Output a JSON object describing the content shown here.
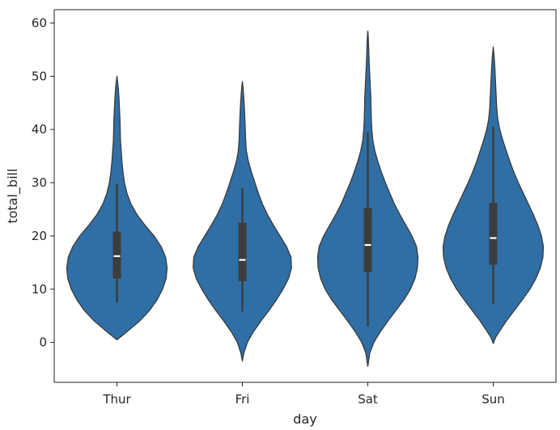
{
  "chart_data": {
    "type": "violin",
    "xlabel": "day",
    "ylabel": "total_bill",
    "ylim": [
      -7.5,
      62.5
    ],
    "yticks": [
      0,
      10,
      20,
      30,
      40,
      50,
      60
    ],
    "grid": false,
    "colors": {
      "violin": "#2f6fa6",
      "outline": "#3a3a3a",
      "box": "#3d3d3d",
      "median": "#ffffff"
    },
    "categories": [
      "Thur",
      "Fri",
      "Sat",
      "Sun"
    ],
    "violins": [
      {
        "category": "Thur",
        "q1": 12.0,
        "median": 16.2,
        "q3": 20.8,
        "whisker_low": 7.5,
        "whisker_high": 29.8,
        "kde_min": 0.5,
        "kde_max": 50.0,
        "profile": [
          [
            0.5,
            0.0
          ],
          [
            2,
            0.2
          ],
          [
            4,
            0.45
          ],
          [
            6,
            0.65
          ],
          [
            8,
            0.8
          ],
          [
            10,
            0.91
          ],
          [
            12,
            0.98
          ],
          [
            14,
            1.0
          ],
          [
            16,
            0.97
          ],
          [
            18,
            0.88
          ],
          [
            20,
            0.74
          ],
          [
            22,
            0.56
          ],
          [
            24,
            0.4
          ],
          [
            26,
            0.28
          ],
          [
            28,
            0.2
          ],
          [
            30,
            0.15
          ],
          [
            32,
            0.12
          ],
          [
            34,
            0.1
          ],
          [
            36,
            0.085
          ],
          [
            38,
            0.07
          ],
          [
            40,
            0.065
          ],
          [
            42,
            0.06
          ],
          [
            44,
            0.05
          ],
          [
            46,
            0.04
          ],
          [
            48,
            0.025
          ],
          [
            50,
            0.0
          ]
        ]
      },
      {
        "category": "Fri",
        "q1": 11.5,
        "median": 15.5,
        "q3": 22.5,
        "whisker_low": 5.8,
        "whisker_high": 29.0,
        "kde_min": -3.5,
        "kde_max": 49.0,
        "profile": [
          [
            -3.5,
            0.0
          ],
          [
            -2,
            0.03
          ],
          [
            0,
            0.1
          ],
          [
            2,
            0.22
          ],
          [
            4,
            0.37
          ],
          [
            6,
            0.53
          ],
          [
            8,
            0.68
          ],
          [
            10,
            0.81
          ],
          [
            12,
            0.92
          ],
          [
            14,
            0.98
          ],
          [
            16,
            0.97
          ],
          [
            18,
            0.88
          ],
          [
            20,
            0.75
          ],
          [
            22,
            0.62
          ],
          [
            24,
            0.5
          ],
          [
            26,
            0.4
          ],
          [
            28,
            0.32
          ],
          [
            30,
            0.25
          ],
          [
            32,
            0.18
          ],
          [
            34,
            0.12
          ],
          [
            36,
            0.08
          ],
          [
            38,
            0.065
          ],
          [
            40,
            0.058
          ],
          [
            42,
            0.05
          ],
          [
            44,
            0.04
          ],
          [
            46,
            0.028
          ],
          [
            48,
            0.012
          ],
          [
            49,
            0.0
          ]
        ]
      },
      {
        "category": "Sat",
        "q1": 13.2,
        "median": 18.3,
        "q3": 25.3,
        "whisker_low": 3.0,
        "whisker_high": 39.5,
        "kde_min": -4.5,
        "kde_max": 58.5,
        "profile": [
          [
            -4.5,
            0.0
          ],
          [
            -2,
            0.04
          ],
          [
            0,
            0.12
          ],
          [
            2,
            0.25
          ],
          [
            4,
            0.4
          ],
          [
            6,
            0.56
          ],
          [
            8,
            0.72
          ],
          [
            10,
            0.85
          ],
          [
            12,
            0.94
          ],
          [
            14,
            0.99
          ],
          [
            16,
            1.0
          ],
          [
            18,
            0.97
          ],
          [
            20,
            0.88
          ],
          [
            22,
            0.76
          ],
          [
            24,
            0.64
          ],
          [
            26,
            0.53
          ],
          [
            28,
            0.44
          ],
          [
            30,
            0.35
          ],
          [
            32,
            0.27
          ],
          [
            34,
            0.2
          ],
          [
            36,
            0.14
          ],
          [
            38,
            0.1
          ],
          [
            40,
            0.08
          ],
          [
            42,
            0.07
          ],
          [
            44,
            0.065
          ],
          [
            46,
            0.06
          ],
          [
            48,
            0.05
          ],
          [
            50,
            0.04
          ],
          [
            52,
            0.03
          ],
          [
            54,
            0.022
          ],
          [
            56,
            0.015
          ],
          [
            58,
            0.005
          ],
          [
            58.5,
            0.0
          ]
        ]
      },
      {
        "category": "Sun",
        "q1": 14.6,
        "median": 19.6,
        "q3": 26.2,
        "whisker_low": 7.2,
        "whisker_high": 40.5,
        "kde_min": -0.2,
        "kde_max": 55.5,
        "profile": [
          [
            -0.2,
            0.0
          ],
          [
            1,
            0.05
          ],
          [
            2,
            0.12
          ],
          [
            4,
            0.26
          ],
          [
            6,
            0.42
          ],
          [
            8,
            0.58
          ],
          [
            10,
            0.73
          ],
          [
            12,
            0.85
          ],
          [
            14,
            0.94
          ],
          [
            16,
            0.99
          ],
          [
            18,
            1.0
          ],
          [
            20,
            0.96
          ],
          [
            22,
            0.89
          ],
          [
            24,
            0.8
          ],
          [
            26,
            0.7
          ],
          [
            28,
            0.6
          ],
          [
            30,
            0.5
          ],
          [
            32,
            0.41
          ],
          [
            34,
            0.33
          ],
          [
            36,
            0.26
          ],
          [
            38,
            0.19
          ],
          [
            40,
            0.13
          ],
          [
            42,
            0.09
          ],
          [
            44,
            0.07
          ],
          [
            46,
            0.06
          ],
          [
            48,
            0.05
          ],
          [
            50,
            0.04
          ],
          [
            52,
            0.03
          ],
          [
            54,
            0.015
          ],
          [
            55.5,
            0.0
          ]
        ]
      }
    ]
  }
}
